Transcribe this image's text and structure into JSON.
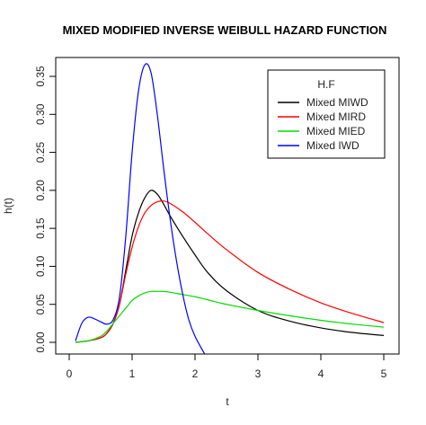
{
  "chart_data": {
    "type": "line",
    "title": "MIXED MODIFIED INVERSE WEIBULL HAZARD FUNCTION",
    "xlabel": "t",
    "ylabel": "h(t)",
    "xlim": [
      0,
      5
    ],
    "ylim": [
      0,
      0.35
    ],
    "x_ticks": [
      0,
      1,
      2,
      3,
      4,
      5
    ],
    "y_ticks": [
      0.0,
      0.05,
      0.1,
      0.15,
      0.2,
      0.25,
      0.3,
      0.35
    ],
    "y_tick_labels": [
      "0.00",
      "0.05",
      "0.10",
      "0.15",
      "0.20",
      "0.25",
      "0.30",
      "0.35"
    ],
    "grid": false,
    "legend": {
      "title": "H.F",
      "position": "top-right",
      "entries": [
        "Mixed MIWD",
        "Mixed MIRD",
        "Mixed MIED",
        "Mixed IWD"
      ]
    },
    "series": [
      {
        "name": "Mixed MIWD",
        "color": "#000000",
        "x": [
          0.1,
          0.3,
          0.5,
          0.6,
          0.7,
          0.8,
          0.9,
          1.0,
          1.1,
          1.2,
          1.3,
          1.4,
          1.5,
          1.6,
          1.8,
          2.0,
          2.2,
          2.5,
          3.0,
          3.5,
          4.0,
          4.5,
          5.0
        ],
        "y": [
          0.0,
          0.002,
          0.006,
          0.012,
          0.025,
          0.05,
          0.095,
          0.14,
          0.17,
          0.19,
          0.2,
          0.195,
          0.182,
          0.167,
          0.14,
          0.115,
          0.092,
          0.068,
          0.042,
          0.028,
          0.019,
          0.013,
          0.009
        ]
      },
      {
        "name": "Mixed MIRD",
        "color": "#ff0000",
        "x": [
          0.1,
          0.3,
          0.5,
          0.6,
          0.7,
          0.8,
          0.9,
          1.0,
          1.1,
          1.2,
          1.3,
          1.4,
          1.5,
          1.6,
          1.8,
          2.0,
          2.2,
          2.5,
          3.0,
          3.5,
          4.0,
          4.5,
          5.0
        ],
        "y": [
          0.0,
          0.002,
          0.006,
          0.012,
          0.025,
          0.05,
          0.09,
          0.125,
          0.152,
          0.17,
          0.18,
          0.185,
          0.186,
          0.183,
          0.172,
          0.158,
          0.143,
          0.122,
          0.092,
          0.07,
          0.052,
          0.038,
          0.026
        ]
      },
      {
        "name": "Mixed MIED",
        "color": "#00dd00",
        "x": [
          0.1,
          0.3,
          0.5,
          0.6,
          0.7,
          0.8,
          0.9,
          1.0,
          1.1,
          1.2,
          1.3,
          1.4,
          1.5,
          1.6,
          1.8,
          2.0,
          2.2,
          2.5,
          3.0,
          3.5,
          4.0,
          4.5,
          5.0
        ],
        "y": [
          0.0,
          0.002,
          0.008,
          0.015,
          0.025,
          0.035,
          0.045,
          0.055,
          0.061,
          0.065,
          0.067,
          0.067,
          0.067,
          0.066,
          0.063,
          0.06,
          0.056,
          0.05,
          0.042,
          0.035,
          0.029,
          0.024,
          0.02
        ]
      },
      {
        "name": "Mixed IWD",
        "color": "#0000ff",
        "x": [
          0.1,
          0.2,
          0.3,
          0.4,
          0.5,
          0.6,
          0.7,
          0.8,
          0.9,
          1.0,
          1.1,
          1.2,
          1.3,
          1.4,
          1.5,
          1.6,
          1.7,
          1.8,
          1.9,
          2.0,
          2.15
        ],
        "y": [
          0.002,
          0.025,
          0.033,
          0.031,
          0.027,
          0.024,
          0.03,
          0.06,
          0.14,
          0.25,
          0.33,
          0.365,
          0.355,
          0.3,
          0.23,
          0.165,
          0.11,
          0.065,
          0.03,
          0.008,
          -0.015
        ]
      }
    ]
  }
}
